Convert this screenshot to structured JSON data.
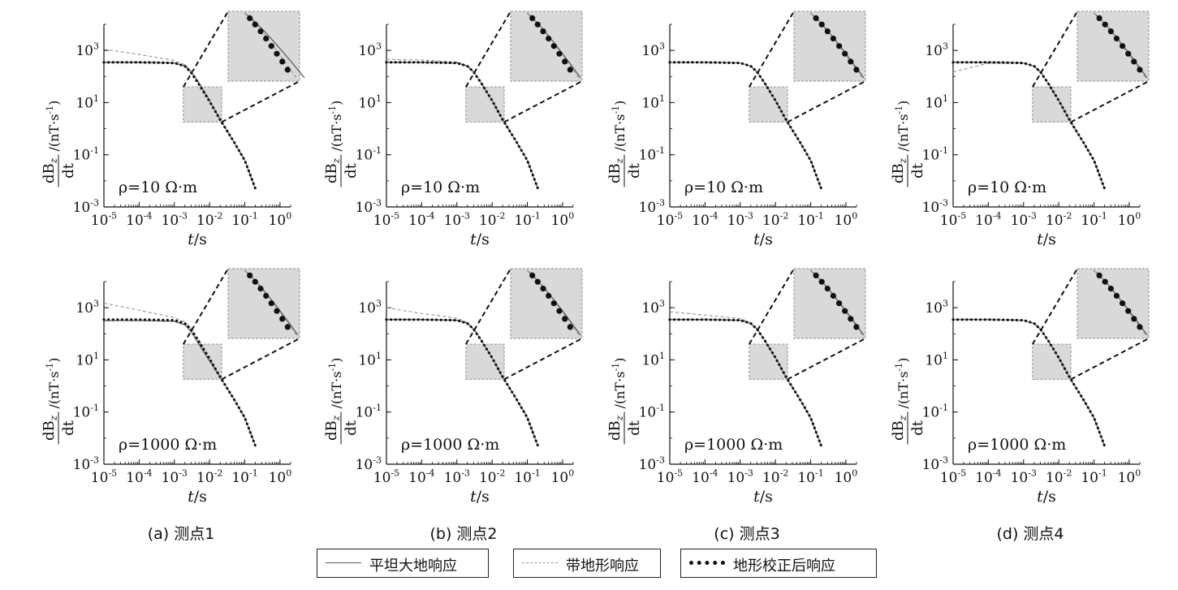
{
  "chart_data": [
    {
      "panel": "a",
      "rho": "ρ=10 Ω·m",
      "caption": "(a) 测点1",
      "type": "line",
      "xscale": "log",
      "yscale": "log",
      "xlim": [
        1e-05,
        2
      ],
      "ylim": [
        0.001,
        10000
      ],
      "xticks": [
        "10^-5",
        "10^-4",
        "10^-3",
        "10^-2",
        "10^-1",
        "10^0"
      ],
      "yticks": [
        "10^-3",
        "10^-1",
        "10^1",
        "10^3"
      ],
      "xlabel": "t/s",
      "ylabel": "dBz/dt /(nT·s^-1)",
      "series": [
        {
          "name": "平坦大地响应",
          "style": "solid",
          "x": [
            1e-05,
            0.0001,
            0.001,
            0.002,
            0.003,
            0.005,
            0.01,
            0.02,
            0.05,
            0.1,
            0.2
          ],
          "y": [
            350,
            350,
            330,
            250,
            150,
            55,
            12,
            2.2,
            0.3,
            0.06,
            0.005
          ]
        },
        {
          "name": "带地形响应",
          "style": "dashed",
          "x": [
            1e-05,
            0.0001,
            0.001,
            0.002,
            0.003,
            0.005,
            0.01,
            0.02,
            0.05,
            0.1,
            0.2
          ],
          "y": [
            1100,
            700,
            420,
            280,
            170,
            62,
            13,
            2.2,
            0.3,
            0.06,
            0.005
          ]
        },
        {
          "name": "地形校正后响应",
          "style": "dotted",
          "x": [
            1e-05,
            0.0001,
            0.001,
            0.002,
            0.003,
            0.005,
            0.01,
            0.02,
            0.05,
            0.1,
            0.2
          ],
          "y": [
            350,
            350,
            330,
            250,
            140,
            50,
            11,
            2.2,
            0.3,
            0.06,
            0.005
          ]
        }
      ]
    },
    {
      "panel": "b",
      "rho": "ρ=10 Ω·m",
      "caption": "(b) 测点2",
      "type": "line",
      "xscale": "log",
      "yscale": "log",
      "xlim": [
        1e-05,
        2
      ],
      "ylim": [
        0.001,
        10000
      ],
      "xticks": [
        "10^-5",
        "10^-4",
        "10^-3",
        "10^-2",
        "10^-1",
        "10^0"
      ],
      "yticks": [
        "10^-3",
        "10^-1",
        "10^1",
        "10^3"
      ],
      "xlabel": "t/s",
      "ylabel": "dBz/dt /(nT·s^-1)",
      "series": [
        {
          "name": "平坦大地响应",
          "style": "solid",
          "x": [
            1e-05,
            0.0001,
            0.001,
            0.002,
            0.003,
            0.005,
            0.01,
            0.02,
            0.05,
            0.1,
            0.2
          ],
          "y": [
            350,
            350,
            330,
            250,
            150,
            55,
            12,
            2.2,
            0.3,
            0.06,
            0.005
          ]
        },
        {
          "name": "带地形响应",
          "style": "dashed",
          "x": [
            1e-05,
            0.0001,
            0.001,
            0.002,
            0.003,
            0.005,
            0.01,
            0.02,
            0.05,
            0.1,
            0.2
          ],
          "y": [
            450,
            430,
            360,
            260,
            155,
            56,
            12,
            2.2,
            0.3,
            0.06,
            0.005
          ]
        },
        {
          "name": "地形校正后响应",
          "style": "dotted",
          "x": [
            1e-05,
            0.0001,
            0.001,
            0.002,
            0.003,
            0.005,
            0.01,
            0.02,
            0.05,
            0.1,
            0.2
          ],
          "y": [
            350,
            350,
            330,
            250,
            148,
            54,
            12,
            2.2,
            0.3,
            0.06,
            0.005
          ]
        }
      ]
    },
    {
      "panel": "c",
      "rho": "ρ=10 Ω·m",
      "caption": "(c) 测点3",
      "type": "line",
      "xscale": "log",
      "yscale": "log",
      "xlim": [
        1e-05,
        2
      ],
      "ylim": [
        0.001,
        10000
      ],
      "xticks": [
        "10^-5",
        "10^-4",
        "10^-3",
        "10^-2",
        "10^-1",
        "10^0"
      ],
      "yticks": [
        "10^-3",
        "10^-1",
        "10^1",
        "10^3"
      ],
      "xlabel": "t/s",
      "ylabel": "dBz/dt /(nT·s^-1)",
      "series": [
        {
          "name": "平坦大地响应",
          "style": "solid",
          "x": [
            1e-05,
            0.0001,
            0.001,
            0.002,
            0.003,
            0.005,
            0.01,
            0.02,
            0.05,
            0.1,
            0.2
          ],
          "y": [
            350,
            350,
            330,
            250,
            150,
            55,
            12,
            2.2,
            0.3,
            0.06,
            0.005
          ]
        },
        {
          "name": "带地形响应",
          "style": "dashed",
          "x": [
            1e-05,
            0.0001,
            0.001,
            0.002,
            0.003,
            0.005,
            0.01,
            0.02,
            0.05,
            0.1,
            0.2
          ],
          "y": [
            360,
            355,
            335,
            252,
            151,
            55,
            12,
            2.2,
            0.3,
            0.06,
            0.005
          ]
        },
        {
          "name": "地形校正后响应",
          "style": "dotted",
          "x": [
            1e-05,
            0.0001,
            0.001,
            0.002,
            0.003,
            0.005,
            0.01,
            0.02,
            0.05,
            0.1,
            0.2
          ],
          "y": [
            350,
            350,
            330,
            250,
            150,
            55,
            12,
            2.2,
            0.3,
            0.06,
            0.005
          ]
        }
      ]
    },
    {
      "panel": "d",
      "rho": "ρ=10 Ω·m",
      "caption": "(d) 测点4",
      "type": "line",
      "xscale": "log",
      "yscale": "log",
      "xlim": [
        1e-05,
        2
      ],
      "ylim": [
        0.001,
        10000
      ],
      "xticks": [
        "10^-5",
        "10^-4",
        "10^-3",
        "10^-2",
        "10^-1",
        "10^0"
      ],
      "yticks": [
        "10^-3",
        "10^-1",
        "10^1",
        "10^3"
      ],
      "xlabel": "t/s",
      "ylabel": "dBz/dt /(nT·s^-1)",
      "series": [
        {
          "name": "平坦大地响应",
          "style": "solid",
          "x": [
            1e-05,
            0.0001,
            0.001,
            0.002,
            0.003,
            0.005,
            0.01,
            0.02,
            0.05,
            0.1,
            0.2
          ],
          "y": [
            350,
            350,
            330,
            250,
            150,
            55,
            12,
            2.2,
            0.3,
            0.06,
            0.005
          ]
        },
        {
          "name": "带地形响应",
          "style": "dashed",
          "x": [
            1e-05,
            0.0001,
            0.001,
            0.002,
            0.003,
            0.005,
            0.01,
            0.02,
            0.05,
            0.1,
            0.2
          ],
          "y": [
            150,
            320,
            330,
            250,
            150,
            55,
            12,
            2.2,
            0.3,
            0.06,
            0.005
          ]
        },
        {
          "name": "地形校正后响应",
          "style": "dotted",
          "x": [
            1e-05,
            0.0001,
            0.001,
            0.002,
            0.003,
            0.005,
            0.01,
            0.02,
            0.05,
            0.1,
            0.2
          ],
          "y": [
            350,
            350,
            330,
            250,
            150,
            55,
            12,
            2.2,
            0.3,
            0.06,
            0.005
          ]
        }
      ]
    },
    {
      "panel": "a",
      "rho": "ρ=1000 Ω·m",
      "caption": "",
      "type": "line",
      "xscale": "log",
      "yscale": "log",
      "xlim": [
        1e-05,
        2
      ],
      "ylim": [
        0.001,
        10000
      ],
      "xticks": [
        "10^-5",
        "10^-4",
        "10^-3",
        "10^-2",
        "10^-1",
        "10^0"
      ],
      "yticks": [
        "10^-3",
        "10^-1",
        "10^1",
        "10^3"
      ],
      "xlabel": "t/s",
      "ylabel": "dBz/dt /(nT·s^-1)",
      "series": [
        {
          "name": "平坦大地响应",
          "style": "solid",
          "x": [
            1e-05,
            0.0001,
            0.001,
            0.002,
            0.003,
            0.005,
            0.01,
            0.02,
            0.05,
            0.1,
            0.2
          ],
          "y": [
            320,
            320,
            300,
            220,
            120,
            40,
            9,
            2.2,
            0.3,
            0.06,
            0.005
          ]
        },
        {
          "name": "带地形响应",
          "style": "dashed",
          "x": [
            1e-05,
            0.0001,
            0.001,
            0.002,
            0.003,
            0.005,
            0.01,
            0.02,
            0.05,
            0.1,
            0.2
          ],
          "y": [
            1500,
            800,
            420,
            280,
            160,
            55,
            12,
            2.2,
            0.3,
            0.06,
            0.005
          ]
        },
        {
          "name": "地形校正后响应",
          "style": "dotted",
          "x": [
            1e-05,
            0.0001,
            0.001,
            0.002,
            0.003,
            0.005,
            0.01,
            0.02,
            0.05,
            0.1,
            0.2
          ],
          "y": [
            350,
            350,
            330,
            250,
            145,
            50,
            11,
            2.2,
            0.3,
            0.06,
            0.005
          ]
        }
      ]
    },
    {
      "panel": "b",
      "rho": "ρ=1000 Ω·m",
      "caption": "",
      "type": "line",
      "xscale": "log",
      "yscale": "log",
      "xlim": [
        1e-05,
        2
      ],
      "ylim": [
        0.001,
        10000
      ],
      "xticks": [
        "10^-5",
        "10^-4",
        "10^-3",
        "10^-2",
        "10^-1",
        "10^0"
      ],
      "yticks": [
        "10^-3",
        "10^-1",
        "10^1",
        "10^3"
      ],
      "xlabel": "t/s",
      "ylabel": "dBz/dt /(nT·s^-1)",
      "series": [
        {
          "name": "平坦大地响应",
          "style": "solid",
          "x": [
            1e-05,
            0.0001,
            0.001,
            0.002,
            0.003,
            0.005,
            0.01,
            0.02,
            0.05,
            0.1,
            0.2
          ],
          "y": [
            350,
            350,
            330,
            250,
            150,
            55,
            12,
            2.2,
            0.3,
            0.06,
            0.005
          ]
        },
        {
          "name": "带地形响应",
          "style": "dashed",
          "x": [
            1e-05,
            0.0001,
            0.001,
            0.002,
            0.003,
            0.005,
            0.01,
            0.02,
            0.05,
            0.1,
            0.2
          ],
          "y": [
            1000,
            600,
            400,
            270,
            155,
            56,
            12,
            2.2,
            0.3,
            0.06,
            0.005
          ]
        },
        {
          "name": "地形校正后响应",
          "style": "dotted",
          "x": [
            1e-05,
            0.0001,
            0.001,
            0.002,
            0.003,
            0.005,
            0.01,
            0.02,
            0.05,
            0.1,
            0.2
          ],
          "y": [
            350,
            350,
            330,
            250,
            148,
            54,
            12,
            2.2,
            0.3,
            0.06,
            0.005
          ]
        }
      ]
    },
    {
      "panel": "c",
      "rho": "ρ=1000 Ω·m",
      "caption": "",
      "type": "line",
      "xscale": "log",
      "yscale": "log",
      "xlim": [
        1e-05,
        2
      ],
      "ylim": [
        0.001,
        10000
      ],
      "xticks": [
        "10^-5",
        "10^-4",
        "10^-3",
        "10^-2",
        "10^-1",
        "10^0"
      ],
      "yticks": [
        "10^-3",
        "10^-1",
        "10^1",
        "10^3"
      ],
      "xlabel": "t/s",
      "ylabel": "dBz/dt /(nT·s^-1)",
      "series": [
        {
          "name": "平坦大地响应",
          "style": "solid",
          "x": [
            1e-05,
            0.0001,
            0.001,
            0.002,
            0.003,
            0.005,
            0.01,
            0.02,
            0.05,
            0.1,
            0.2
          ],
          "y": [
            350,
            350,
            330,
            250,
            150,
            55,
            12,
            2.2,
            0.3,
            0.06,
            0.005
          ]
        },
        {
          "name": "带地形响应",
          "style": "dashed",
          "x": [
            1e-05,
            0.0001,
            0.001,
            0.002,
            0.003,
            0.005,
            0.01,
            0.02,
            0.05,
            0.1,
            0.2
          ],
          "y": [
            700,
            520,
            380,
            260,
            152,
            55,
            12,
            2.2,
            0.3,
            0.06,
            0.005
          ]
        },
        {
          "name": "地形校正后响应",
          "style": "dotted",
          "x": [
            1e-05,
            0.0001,
            0.001,
            0.002,
            0.003,
            0.005,
            0.01,
            0.02,
            0.05,
            0.1,
            0.2
          ],
          "y": [
            350,
            350,
            330,
            250,
            150,
            55,
            12,
            2.2,
            0.3,
            0.06,
            0.005
          ]
        }
      ]
    },
    {
      "panel": "d",
      "rho": "ρ=1000 Ω·m",
      "caption": "",
      "type": "line",
      "xscale": "log",
      "yscale": "log",
      "xlim": [
        1e-05,
        2
      ],
      "ylim": [
        0.001,
        10000
      ],
      "xticks": [
        "10^-5",
        "10^-4",
        "10^-3",
        "10^-2",
        "10^-1",
        "10^0"
      ],
      "yticks": [
        "10^-3",
        "10^-1",
        "10^1",
        "10^3"
      ],
      "xlabel": "t/s",
      "ylabel": "dBz/dt /(nT·s^-1)",
      "series": [
        {
          "name": "平坦大地响应",
          "style": "solid",
          "x": [
            1e-05,
            0.0001,
            0.001,
            0.002,
            0.003,
            0.005,
            0.01,
            0.02,
            0.05,
            0.1,
            0.2
          ],
          "y": [
            350,
            350,
            330,
            250,
            150,
            55,
            12,
            2.2,
            0.3,
            0.06,
            0.005
          ]
        },
        {
          "name": "带地形响应",
          "style": "dashed",
          "x": [
            1e-05,
            0.0001,
            0.001,
            0.002,
            0.003,
            0.005,
            0.01,
            0.02,
            0.05,
            0.1,
            0.2
          ],
          "y": [
            340,
            345,
            330,
            250,
            150,
            55,
            12,
            2.2,
            0.3,
            0.06,
            0.005
          ]
        },
        {
          "name": "地形校正后响应",
          "style": "dotted",
          "x": [
            1e-05,
            0.0001,
            0.001,
            0.002,
            0.003,
            0.005,
            0.01,
            0.02,
            0.05,
            0.1,
            0.2
          ],
          "y": [
            350,
            350,
            330,
            250,
            150,
            55,
            12,
            2.2,
            0.3,
            0.06,
            0.005
          ]
        }
      ]
    }
  ],
  "legend": {
    "flat": "平坦大地响应",
    "terrain": "带地形响应",
    "corrected": "地形校正后响应"
  },
  "colors": {
    "flat": "#555555",
    "terrain": "#9a9a9a",
    "corrected": "#111111",
    "zoom_fill": "#d9d9d9",
    "zoom_border": "#a0a0a0"
  }
}
